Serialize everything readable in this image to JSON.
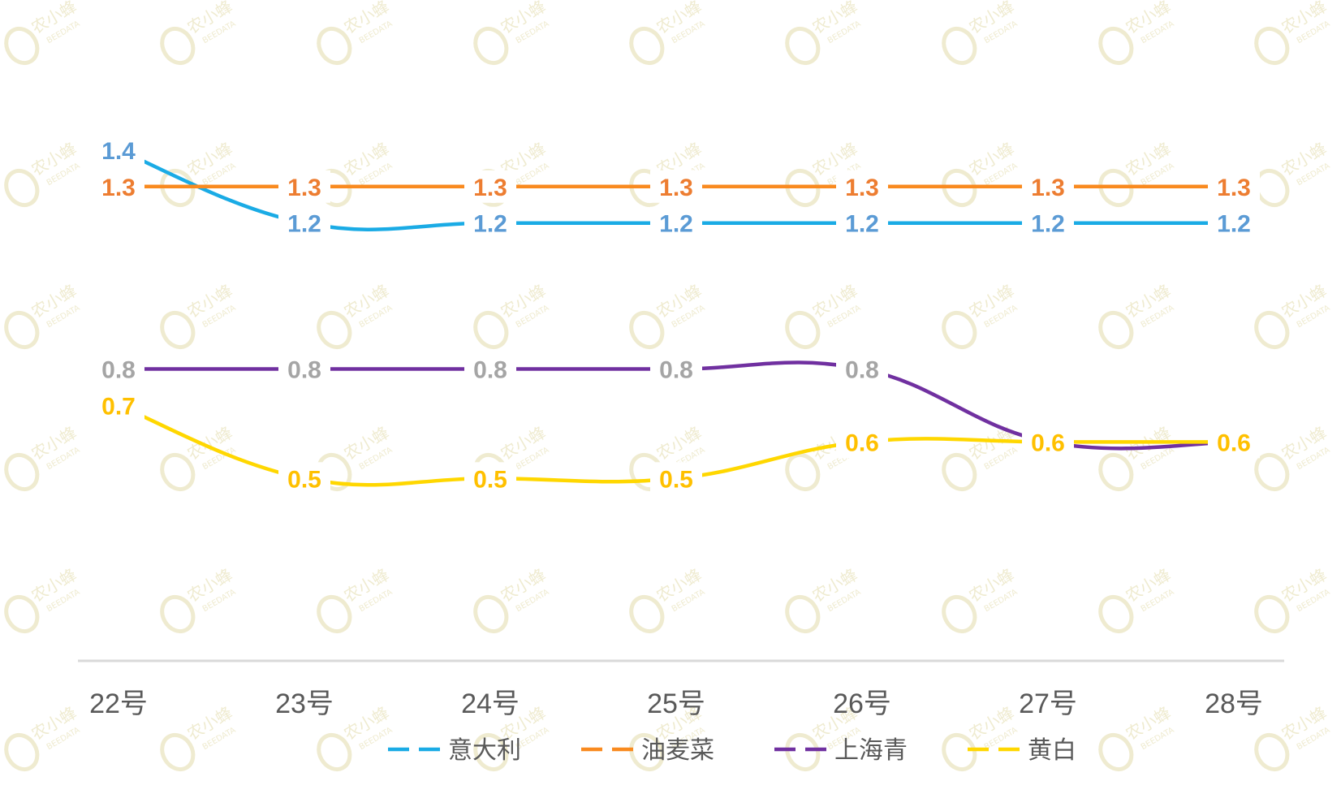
{
  "chart_data": {
    "type": "line",
    "categories": [
      "22号",
      "23号",
      "24号",
      "25号",
      "26号",
      "27号",
      "28号"
    ],
    "series": [
      {
        "name": "意大利",
        "color": "#1AABE5",
        "label_color": "#5B9BD5",
        "values": [
          1.4,
          1.2,
          1.2,
          1.2,
          1.2,
          1.2,
          1.2
        ]
      },
      {
        "name": "油麦菜",
        "color": "#F98A1F",
        "label_color": "#ED7D31",
        "values": [
          1.3,
          1.3,
          1.3,
          1.3,
          1.3,
          1.3,
          1.3
        ]
      },
      {
        "name": "上海青",
        "color": "#7030A0",
        "label_color": "#A5A5A5",
        "values": [
          0.8,
          0.8,
          0.8,
          0.8,
          0.8,
          0.6,
          0.6
        ]
      },
      {
        "name": "黄白",
        "color": "#FFD700",
        "label_color": "#FFC000",
        "values": [
          0.7,
          0.5,
          0.5,
          0.5,
          0.6,
          0.6,
          0.6
        ]
      }
    ],
    "value_labels": {
      "意大利": [
        "1.4",
        "1.2",
        "1.2",
        "1.2",
        "1.2",
        "1.2",
        "1.2"
      ],
      "油麦菜": [
        "1.3",
        "1.3",
        "1.3",
        "1.3",
        "1.3",
        "1.3",
        "1.3"
      ],
      "上海青": [
        "0.8",
        "0.8",
        "0.8",
        "0.8",
        "0.8",
        "",
        ""
      ],
      "黄白": [
        "0.7",
        "0.5",
        "0.5",
        "0.5",
        "0.6",
        "0.6",
        "0.6"
      ]
    },
    "title": "",
    "xlabel": "",
    "ylabel": "",
    "ylim": [
      0,
      1.7
    ],
    "grid": false,
    "legend": "bottom",
    "axis_color": "#D9D9D9",
    "watermark": {
      "text": "农小蜂",
      "subtext": "BEEDATA",
      "color": "#EFEBD0"
    }
  }
}
